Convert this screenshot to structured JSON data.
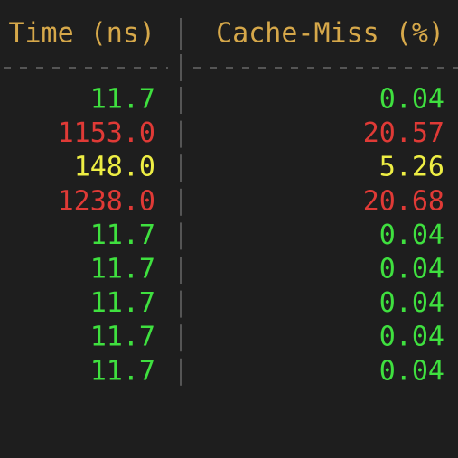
{
  "table": {
    "header": [
      "Time (ns)",
      "Cache-Miss (%)"
    ],
    "header_color": "#d6a84a",
    "rows": [
      {
        "cells": [
          "11.7",
          "0.04"
        ],
        "color": "#3fe03f"
      },
      {
        "cells": [
          "1153.0",
          "20.57"
        ],
        "color": "#e03a36"
      },
      {
        "cells": [
          "148.0",
          "5.26"
        ],
        "color": "#eeee44"
      },
      {
        "cells": [
          "1238.0",
          "20.68"
        ],
        "color": "#e03a36"
      },
      {
        "cells": [
          "11.7",
          "0.04"
        ],
        "color": "#3fe03f"
      },
      {
        "cells": [
          "11.7",
          "0.04"
        ],
        "color": "#3fe03f"
      },
      {
        "cells": [
          "11.7",
          "0.04"
        ],
        "color": "#3fe03f"
      },
      {
        "cells": [
          "11.7",
          "0.04"
        ],
        "color": "#3fe03f"
      },
      {
        "cells": [
          "11.7",
          "0.04"
        ],
        "color": "#3fe03f"
      }
    ]
  }
}
